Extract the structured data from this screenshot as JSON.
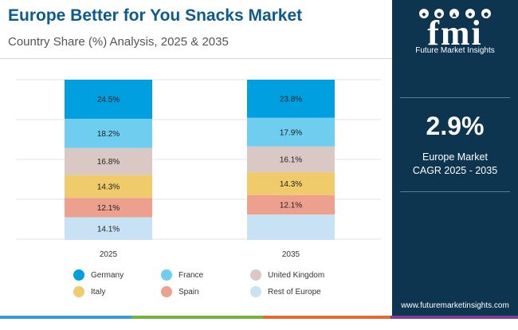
{
  "header": {
    "title": "Europe Better for You Snacks Market",
    "subtitle": "Country Share (%) Analysis, 2025 & 2035"
  },
  "brand": {
    "logo_text": "fmi",
    "logo_caption": "Future Market Insights",
    "website": "www.futuremarketinsights.com",
    "colors": {
      "panel": "#0e3550",
      "title": "#0d5a8c"
    }
  },
  "cagr": {
    "value": "2.9%",
    "label_line1": "Europe Market",
    "label_line2": "CAGR 2025 - 2035"
  },
  "chart_data": {
    "type": "bar",
    "stacked": true,
    "categories": [
      "2025",
      "2035"
    ],
    "series": [
      {
        "name": "Germany",
        "color": "#009fdf",
        "values": [
          24.5,
          23.8
        ]
      },
      {
        "name": "France",
        "color": "#6fcdf0",
        "values": [
          18.2,
          17.9
        ]
      },
      {
        "name": "United Kingdom",
        "color": "#d9c8c3",
        "values": [
          16.8,
          16.1
        ]
      },
      {
        "name": "Italy",
        "color": "#efcb6b",
        "values": [
          14.3,
          14.3
        ]
      },
      {
        "name": "Spain",
        "color": "#eda08d",
        "values": [
          12.1,
          12.1
        ]
      },
      {
        "name": "Rest of Europe",
        "color": "#c6e2f4",
        "values": [
          14.1,
          15.8
        ]
      }
    ],
    "data_labels": [
      [
        "24.5%",
        "18.2%",
        "16.8%",
        "14.3%",
        "12.1%",
        "14.1%"
      ],
      [
        "23.8%",
        "17.9%",
        "16.1%",
        "14.3%",
        "12.1%",
        ""
      ]
    ],
    "grid": true,
    "legend_position": "bottom"
  },
  "bottom_bar_colors": [
    "#3c9ad6",
    "#72b43e",
    "#e46b2f",
    "#7a3f9a"
  ]
}
